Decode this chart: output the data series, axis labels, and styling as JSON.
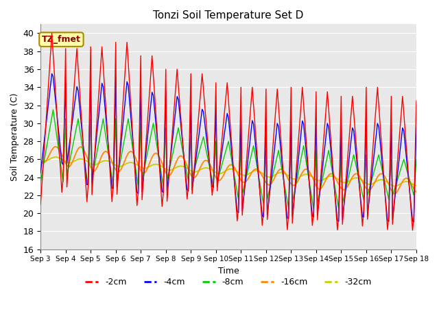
{
  "title": "Tonzi Soil Temperature Set D",
  "xlabel": "Time",
  "ylabel": "Soil Temperature (C)",
  "ylim": [
    16,
    41
  ],
  "xlim_days": [
    3,
    18
  ],
  "colors": {
    "-2cm": "#FF0000",
    "-4cm": "#0000FF",
    "-8cm": "#00CC00",
    "-16cm": "#FF8800",
    "-32cm": "#CCCC00"
  },
  "legend_labels": [
    "-2cm",
    "-4cm",
    "-8cm",
    "-16cm",
    "-32cm"
  ],
  "annotation": "TZ_fmet",
  "bg_color": "#E8E8E8",
  "fig_color": "#FFFFFF",
  "tick_labels": [
    "Sep 3",
    "Sep 4",
    "Sep 5",
    "Sep 6",
    "Sep 7",
    "Sep 8",
    "Sep 9",
    "Sep 10",
    "Sep 11",
    "Sep 12",
    "Sep 13",
    "Sep 14",
    "Sep 15",
    "Sep 16",
    "Sep 17",
    "Sep 18"
  ],
  "tick_positions": [
    3,
    4,
    5,
    6,
    7,
    8,
    9,
    10,
    11,
    12,
    13,
    14,
    15,
    16,
    17,
    18
  ],
  "yticks": [
    16,
    18,
    20,
    22,
    24,
    26,
    28,
    30,
    32,
    34,
    36,
    38,
    40
  ]
}
